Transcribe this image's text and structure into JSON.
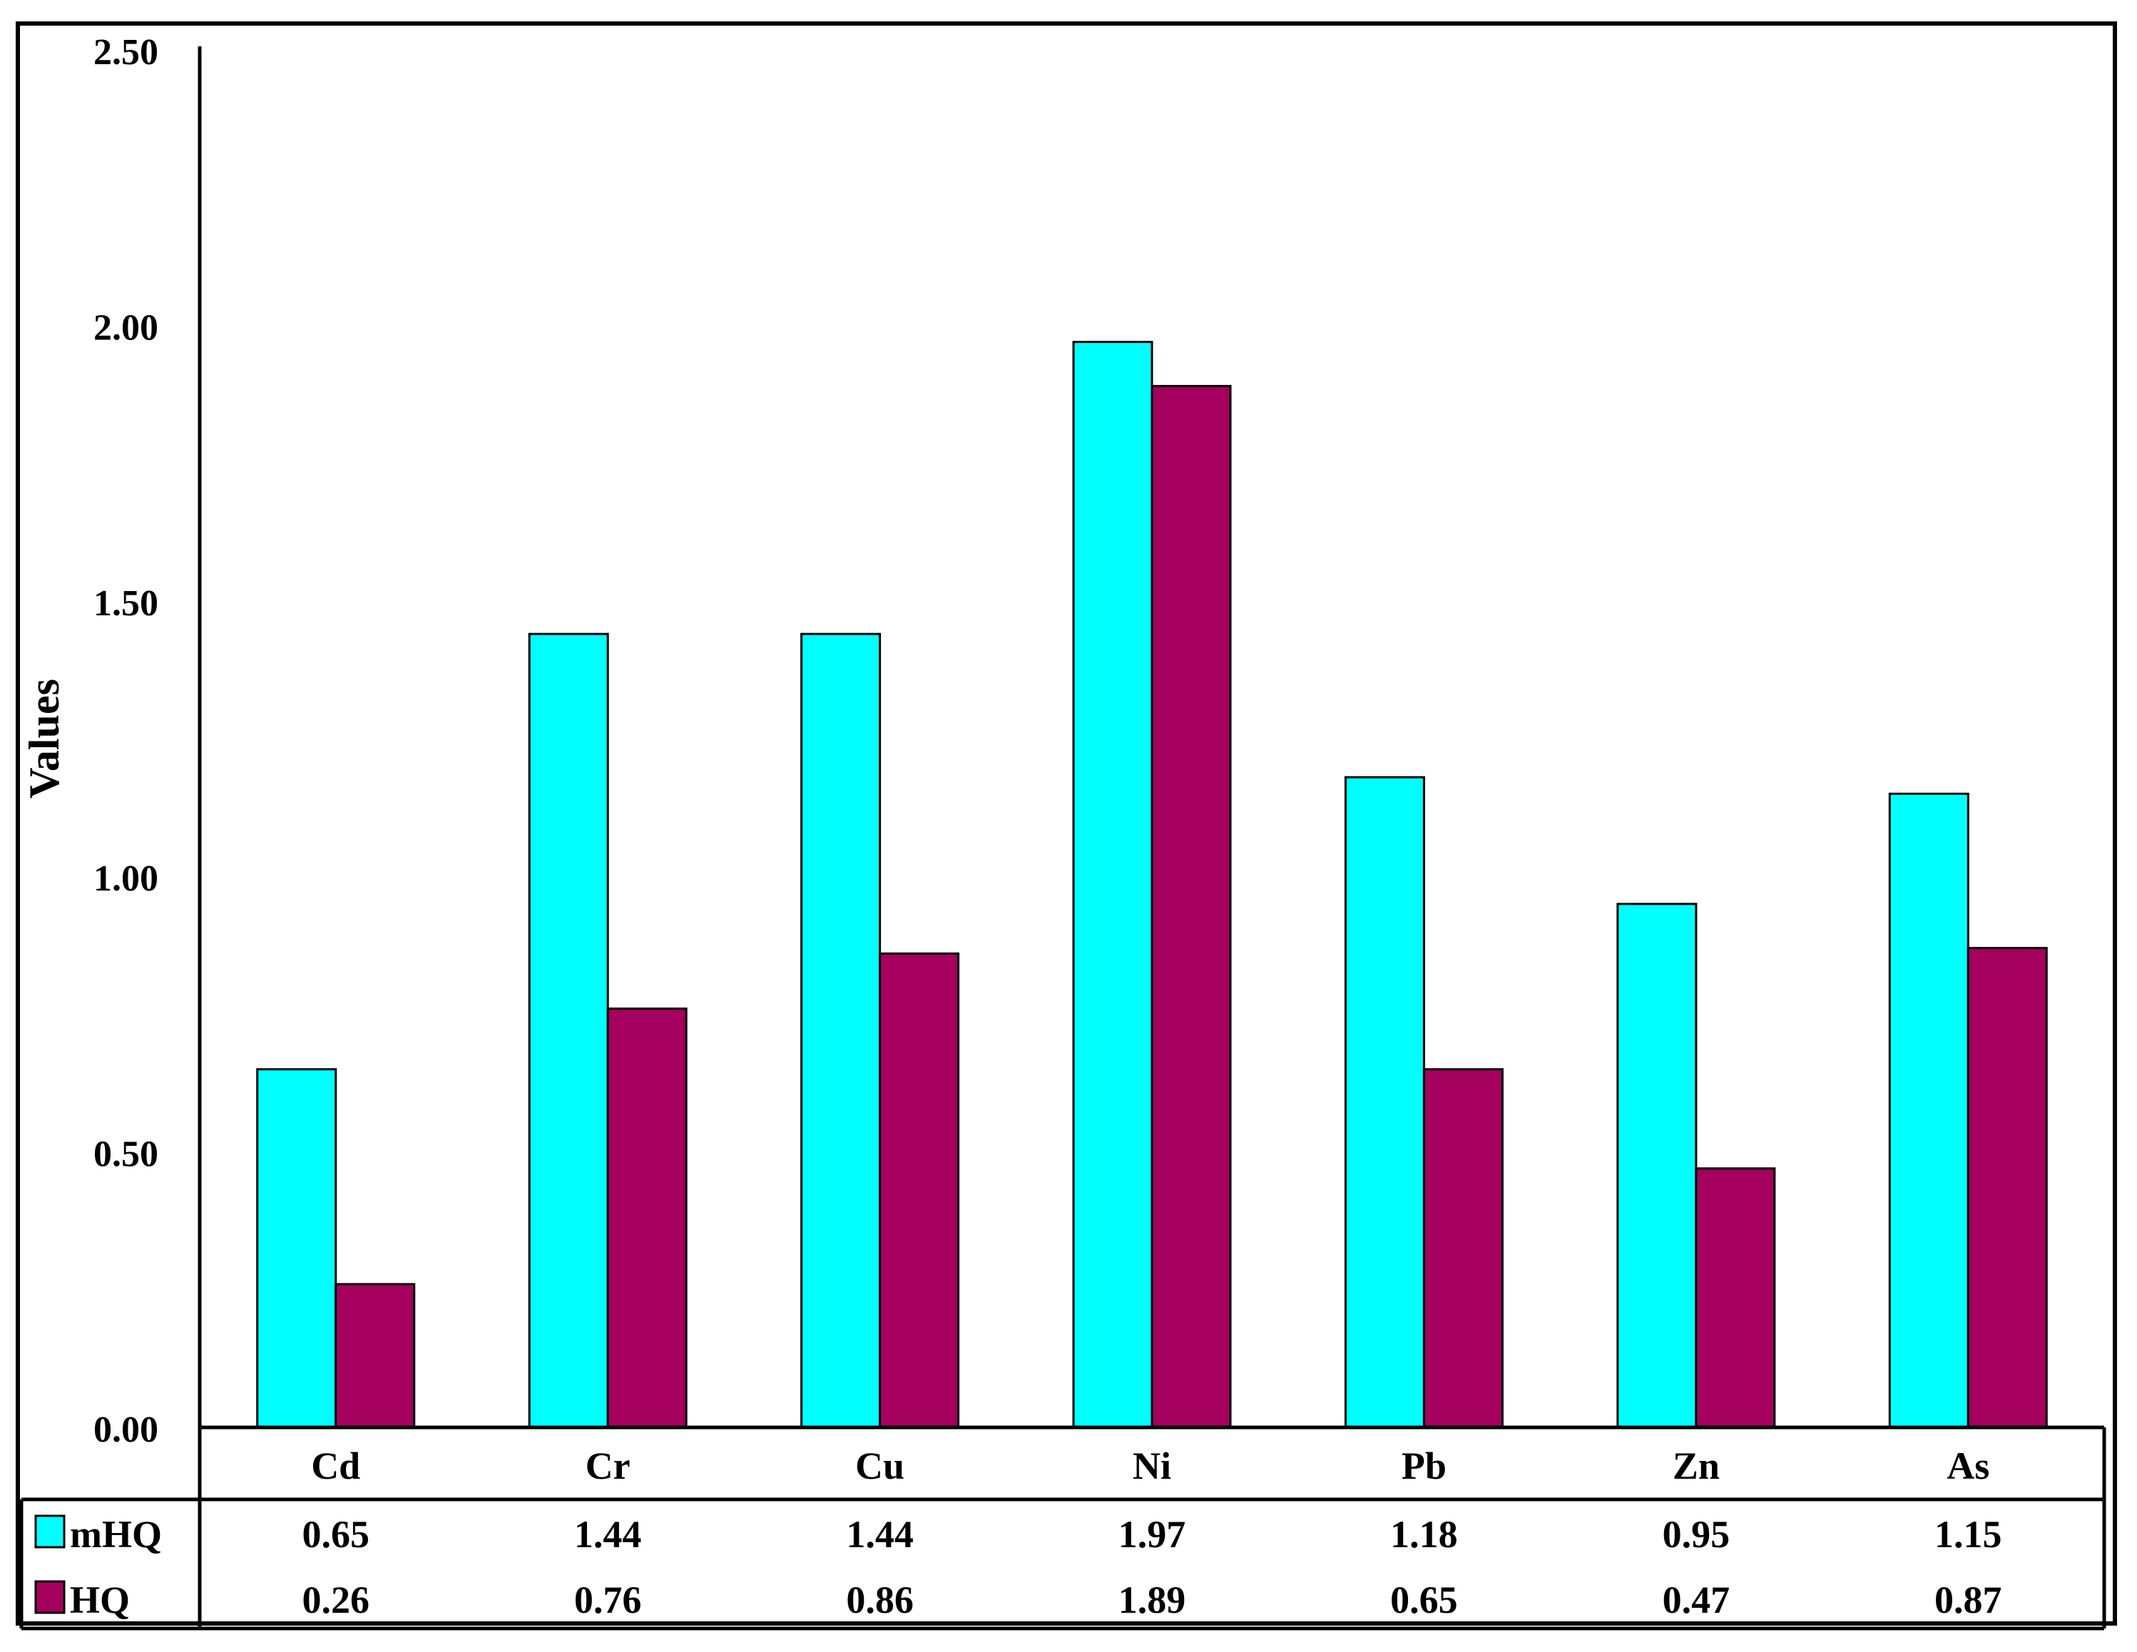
{
  "chart_data": {
    "type": "bar",
    "categories": [
      "Cd",
      "Cr",
      "Cu",
      "Ni",
      "Pb",
      "Zn",
      "As"
    ],
    "series": [
      {
        "name": "mHQ",
        "values": [
          0.65,
          1.44,
          1.44,
          1.97,
          1.18,
          0.95,
          1.15
        ],
        "color": "#00FFFF"
      },
      {
        "name": "HQ",
        "values": [
          0.26,
          0.76,
          0.86,
          1.89,
          0.65,
          0.47,
          0.87
        ],
        "color": "#A5005E"
      }
    ],
    "value_labels": {
      "mHQ": [
        "0.65",
        "1.44",
        "1.44",
        "1.97",
        "1.18",
        "0.95",
        "1.15"
      ],
      "HQ": [
        "0.26",
        "0.76",
        "0.86",
        "1.89",
        "0.65",
        "0.47",
        "0.87"
      ]
    },
    "ylabel": "Values",
    "ylim": [
      0,
      2.5
    ],
    "yticks": [
      "0.00",
      "0.50",
      "1.00",
      "1.50",
      "2.00",
      "2.50"
    ],
    "grid": false,
    "legend": "data-table"
  }
}
